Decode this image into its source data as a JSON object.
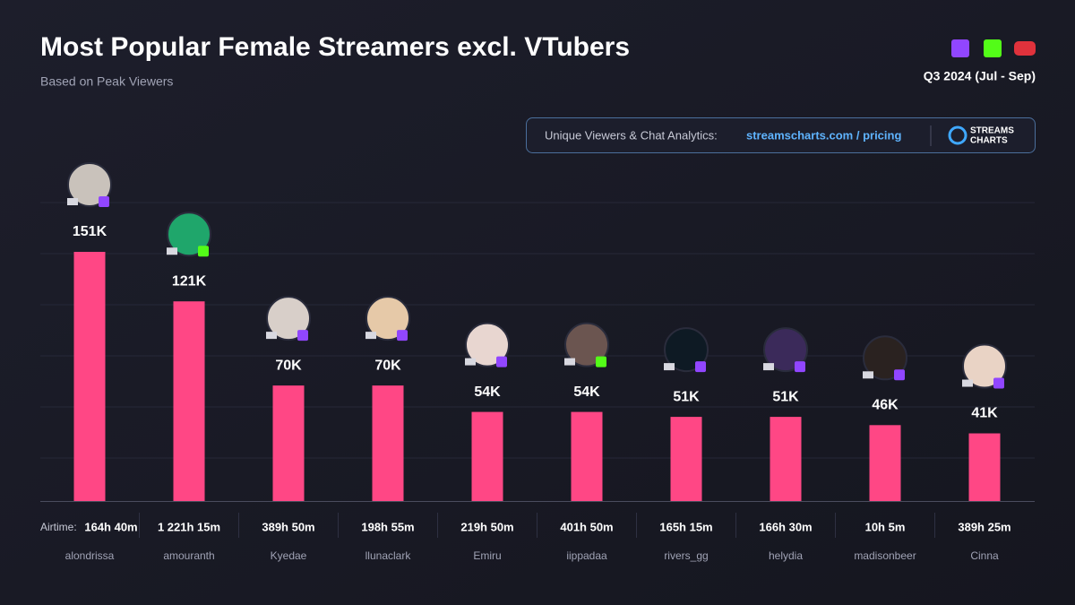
{
  "chart_data": {
    "type": "bar",
    "title": "Most Popular Female Streamers excl. VTubers",
    "subtitle": "Based on Peak Viewers",
    "period": "Q3 2024 (Jul - Sep)",
    "promo_text": "Unique Viewers & Chat Analytics:",
    "promo_link": "streamscharts.com / pricing",
    "logo": [
      "STREAMS",
      "CHARTS"
    ],
    "color": "#ff4785",
    "categories": [
      "alondrissa",
      "amouranth",
      "Kyedae",
      "llunaclark",
      "Emiru",
      "iippadaa",
      "rivers_gg",
      "helydia",
      "madisonbeer",
      "Cinna"
    ],
    "values": [
      151000,
      121000,
      70000,
      70000,
      54000,
      54000,
      51000,
      51000,
      46000,
      41000
    ],
    "value_labels": [
      "151K",
      "121K",
      "70K",
      "70K",
      "54K",
      "54K",
      "51K",
      "51K",
      "46K",
      "41K"
    ],
    "airtime_label": "Airtime:",
    "airtime": [
      "164h 40m",
      "1 221h 15m",
      "389h 50m",
      "198h 55m",
      "219h 50m",
      "401h 50m",
      "165h 15m",
      "166h 30m",
      "10h 5m",
      "389h 25m"
    ]
  }
}
